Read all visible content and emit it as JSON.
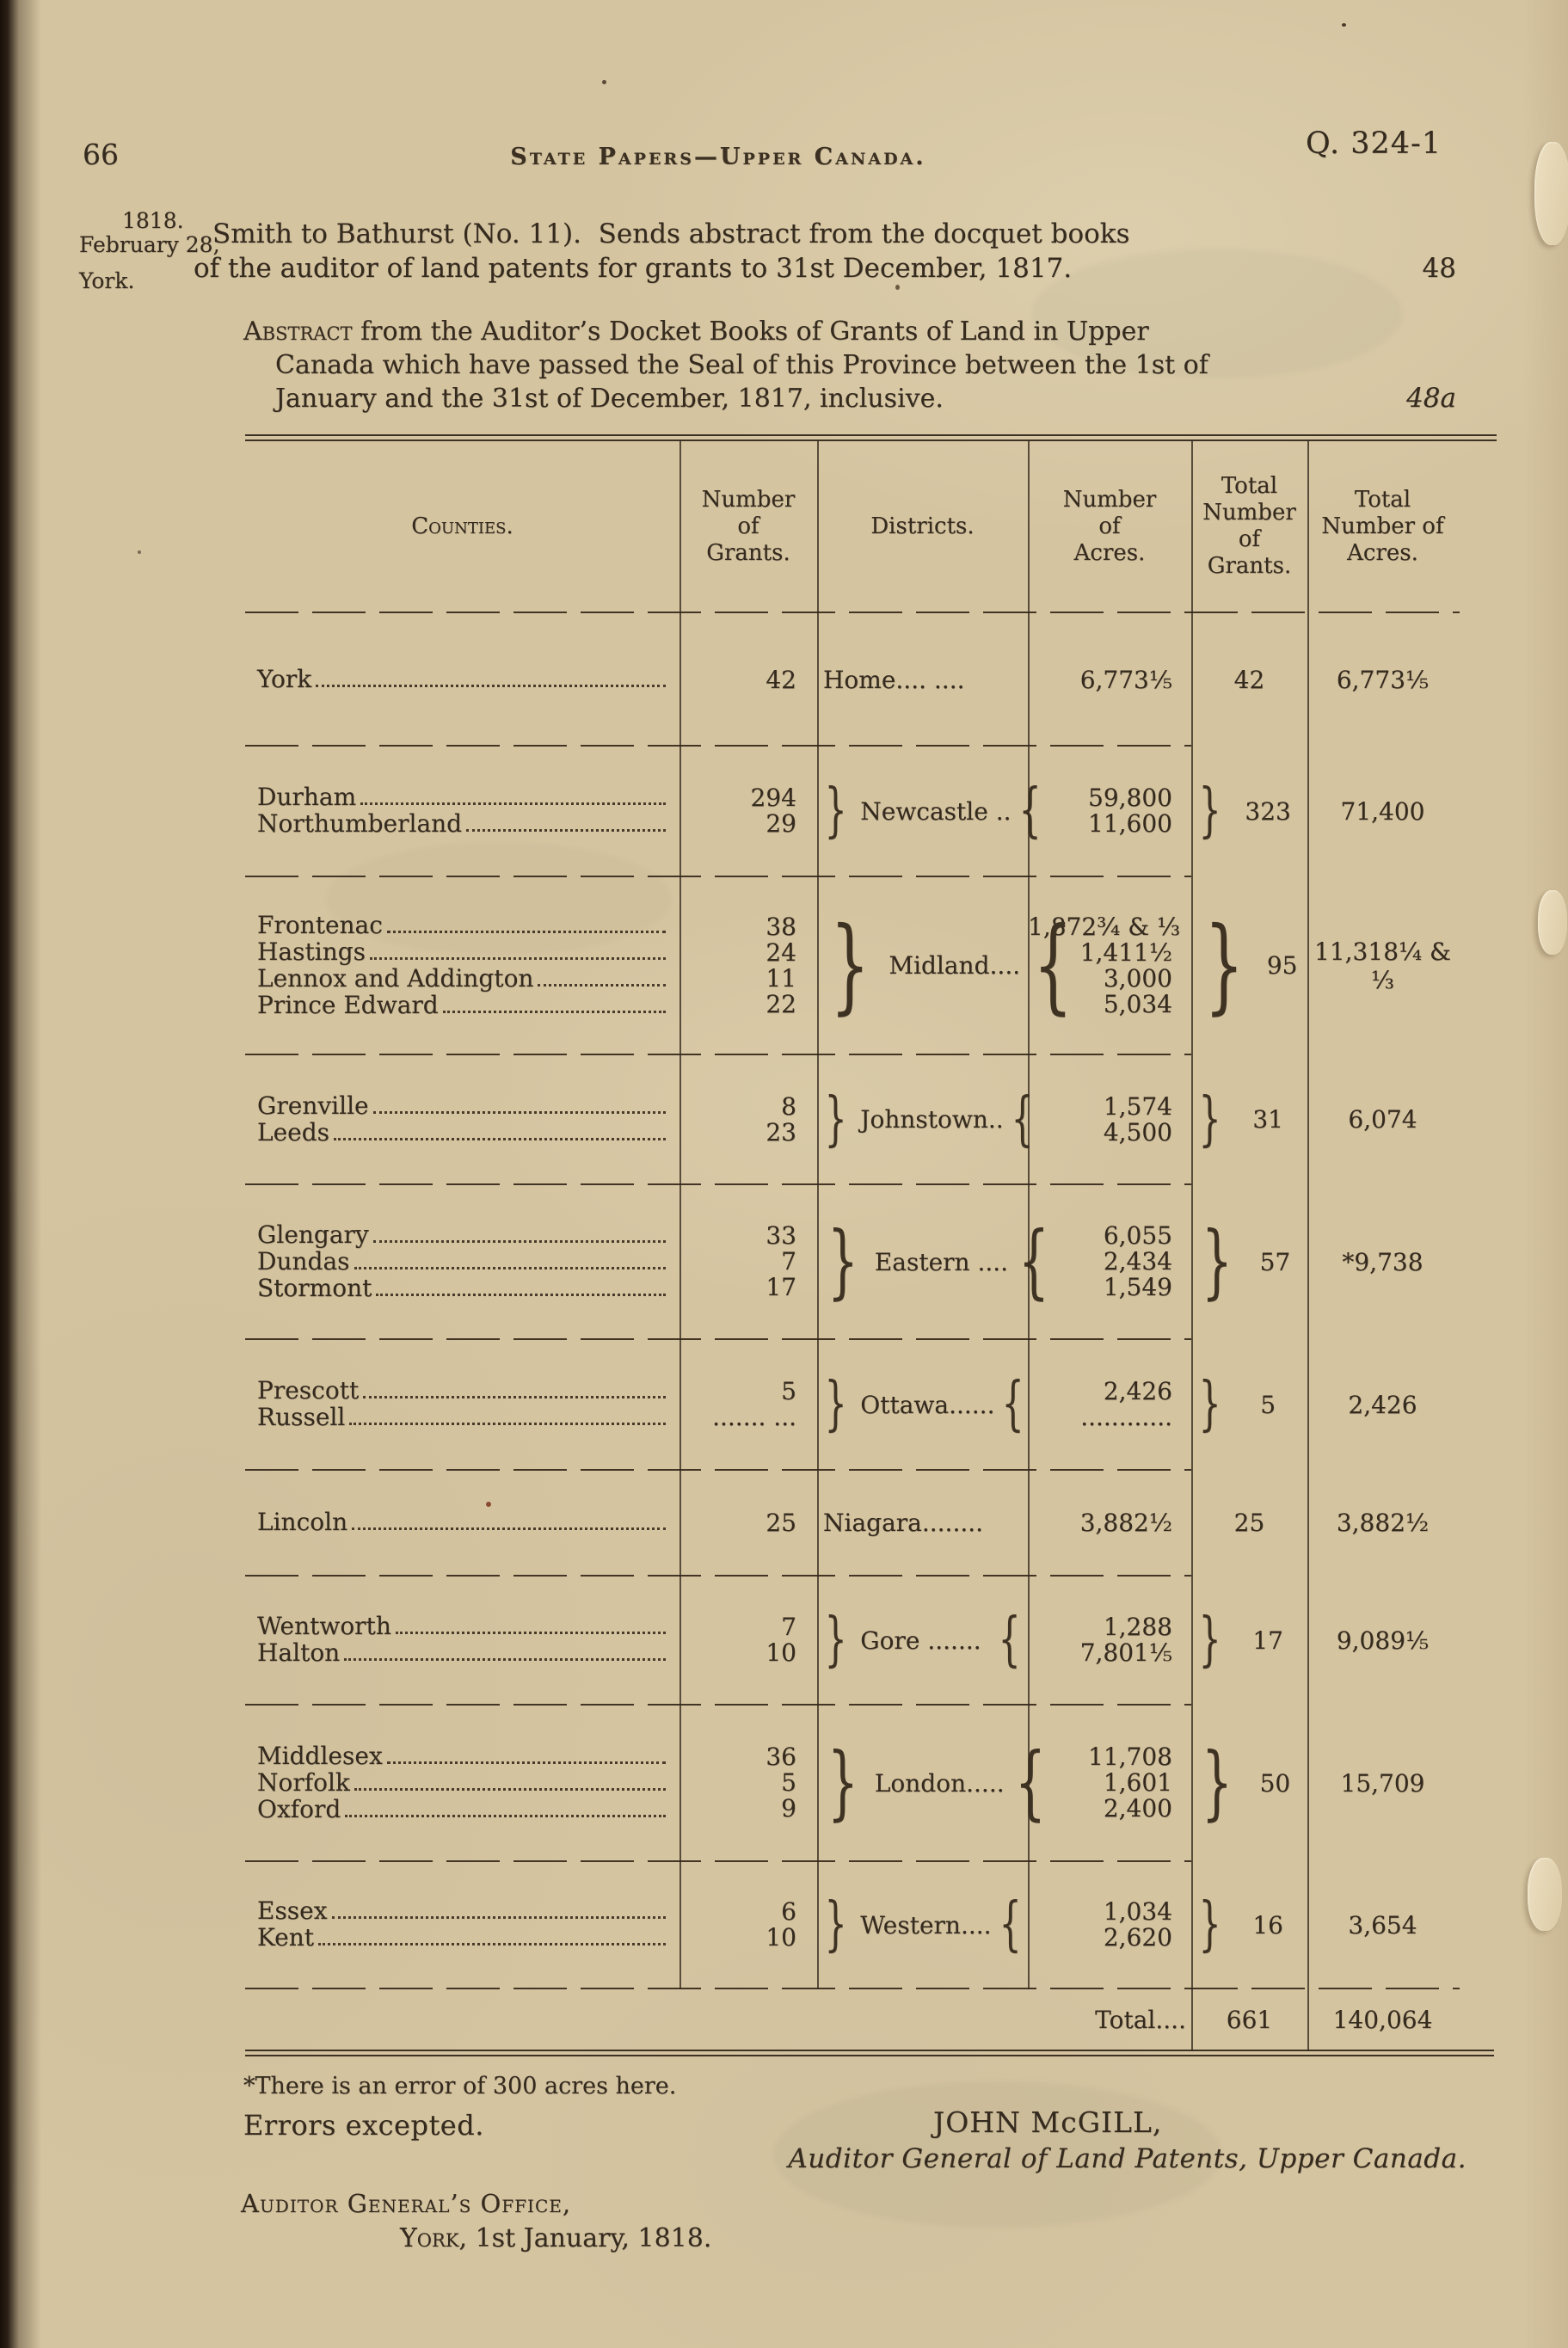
{
  "page": {
    "number": "66",
    "running_title": "State Papers—Upper Canada.",
    "doc_ref": "Q. 324-1"
  },
  "margin_note": {
    "year": "1818.",
    "date": "February 28,",
    "place": "York."
  },
  "intro": {
    "line1": "Smith to Bathurst (No. 11).  Sends abstract from the docquet books",
    "line2": "of the auditor of land patents for grants to 31st December, 1817.",
    "folio": "48"
  },
  "abstract": {
    "lead_word": "Abstract",
    "line1_rest": " from the Auditor’s Docket Books of Grants of Land in Upper",
    "line2": "Canada which have passed the Seal of this Province between the 1st of",
    "line3": "January and the 31st of December, 1817, inclusive.",
    "folio": "48a"
  },
  "table": {
    "headers": [
      "Counties.",
      "Number\nof\nGrants.",
      "Districts.",
      "Number\nof\nAcres.",
      "Total\nNumber\nof\nGrants.",
      "Total\nNumber of\nAcres."
    ],
    "groups": [
      {
        "counties": [
          {
            "name": "York",
            "grants": "42"
          }
        ],
        "district": "Home.... ....",
        "acres": [
          "6,773⅕"
        ],
        "total_grants": "42",
        "total_acres": "6,773⅕"
      },
      {
        "counties": [
          {
            "name": "Durham",
            "grants": "294"
          },
          {
            "name": "Northumberland",
            "grants": "29"
          }
        ],
        "district": "Newcastle ..",
        "acres": [
          "59,800",
          "11,600"
        ],
        "total_grants": "323",
        "total_acres": "71,400"
      },
      {
        "counties": [
          {
            "name": "Frontenac",
            "grants": "38"
          },
          {
            "name": "Hastings",
            "grants": "24"
          },
          {
            "name": "Lennox and Addington",
            "grants": "11"
          },
          {
            "name": "Prince Edward",
            "grants": "22"
          }
        ],
        "district": "Midland....",
        "acres": [
          "1,872¾ & ⅓",
          "1,411½",
          "3,000",
          "5,034"
        ],
        "total_grants": "95",
        "total_acres": "11,318¼ & ⅓"
      },
      {
        "counties": [
          {
            "name": "Grenville",
            "grants": "8"
          },
          {
            "name": "Leeds",
            "grants": "23"
          }
        ],
        "district": "Johnstown..",
        "acres": [
          "1,574",
          "4,500"
        ],
        "total_grants": "31",
        "total_acres": "6,074"
      },
      {
        "counties": [
          {
            "name": "Glengary",
            "grants": "33"
          },
          {
            "name": "Dundas",
            "grants": "7"
          },
          {
            "name": "Stormont",
            "grants": "17"
          }
        ],
        "district": "Eastern ....",
        "acres": [
          "6,055",
          "2,434",
          "1,549"
        ],
        "total_grants": "57",
        "total_acres": "*9,738"
      },
      {
        "counties": [
          {
            "name": "Prescott",
            "grants": "5"
          },
          {
            "name": "Russell",
            "grants": "....... ..."
          }
        ],
        "district": "Ottawa......",
        "acres": [
          "2,426",
          "............"
        ],
        "total_grants": "5",
        "total_acres": "2,426"
      },
      {
        "counties": [
          {
            "name": "Lincoln",
            "grants": "25"
          }
        ],
        "district": "Niagara........",
        "acres": [
          "3,882½"
        ],
        "total_grants": "25",
        "total_acres": "3,882½"
      },
      {
        "counties": [
          {
            "name": "Wentworth",
            "grants": "7"
          },
          {
            "name": "Halton",
            "grants": "10"
          }
        ],
        "district": "Gore .......",
        "acres": [
          "1,288",
          "7,801⅕"
        ],
        "total_grants": "17",
        "total_acres": "9,089⅕"
      },
      {
        "counties": [
          {
            "name": "Middlesex",
            "grants": "36"
          },
          {
            "name": "Norfolk",
            "grants": "5"
          },
          {
            "name": "Oxford",
            "grants": "9"
          }
        ],
        "district": "London.....",
        "acres": [
          "11,708",
          "1,601",
          "2,400"
        ],
        "total_grants": "50",
        "total_acres": "15,709"
      },
      {
        "counties": [
          {
            "name": "Essex",
            "grants": "6"
          },
          {
            "name": "Kent",
            "grants": "10"
          }
        ],
        "district": "Western....",
        "acres": [
          "1,034",
          "2,620"
        ],
        "total_grants": "16",
        "total_acres": "3,654"
      }
    ],
    "total": {
      "label": "Total....",
      "grants": "661",
      "acres": "140,064"
    }
  },
  "footnote": "*There is an error of 300 acres here.",
  "closing": {
    "errors_note": "Errors excepted.",
    "signature": "JOHN McGILL,",
    "signature_title": "Auditor General of Land Patents, Upper Canada.",
    "office": "Auditor General’s Office,",
    "place": "York,",
    "date_rest": " 1st January, 1818."
  }
}
